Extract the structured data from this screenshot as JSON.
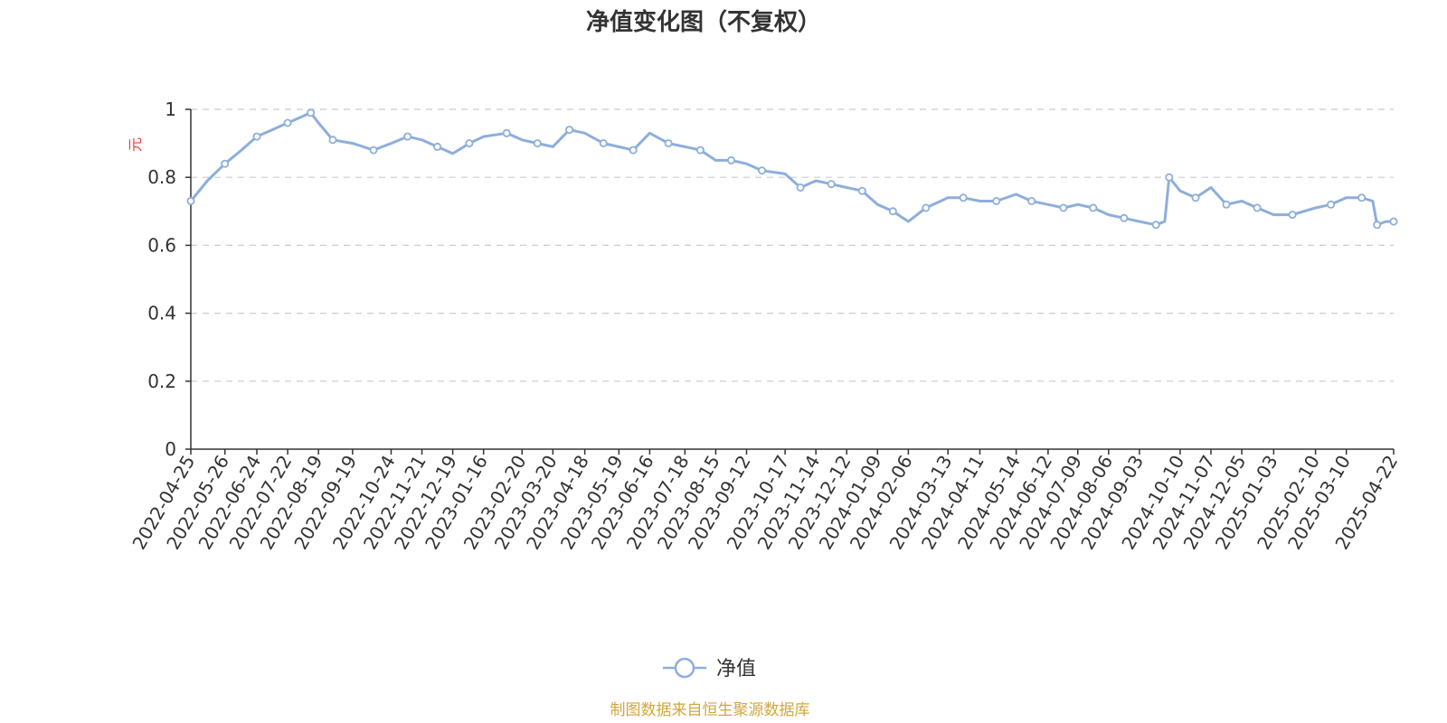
{
  "chart_data": {
    "type": "line",
    "title": "净值变化图（不复权）",
    "ylabel": "元",
    "ylim": [
      0,
      1
    ],
    "yticks": [
      0,
      0.2,
      0.4,
      0.6,
      0.8,
      1
    ],
    "ytick_labels": [
      "0",
      "0.2",
      "0.4",
      "0.6",
      "0.8",
      "1"
    ],
    "grid": true,
    "legend_position": "bottom-center",
    "x_tick_labels": [
      "2022-04-25",
      "2022-05-26",
      "2022-06-24",
      "2022-07-22",
      "2022-08-19",
      "2022-09-19",
      "2022-10-24",
      "2022-11-21",
      "2022-12-19",
      "2023-01-16",
      "2023-02-20",
      "2023-03-20",
      "2023-04-18",
      "2023-05-19",
      "2023-06-16",
      "2023-07-18",
      "2023-08-15",
      "2023-09-12",
      "2023-10-17",
      "2023-11-14",
      "2023-12-12",
      "2024-01-09",
      "2024-02-06",
      "2024-03-13",
      "2024-04-11",
      "2024-05-14",
      "2024-06-12",
      "2024-07-09",
      "2024-08-06",
      "2024-09-03",
      "2024-10-10",
      "2024-11-07",
      "2024-12-05",
      "2025-01-03",
      "2025-02-10",
      "2025-03-10",
      "2025-04-22"
    ],
    "series": [
      {
        "name": "净值",
        "color": "#8eaedb",
        "x": [
          "2022-04-25",
          "2022-05-10",
          "2022-05-26",
          "2022-06-10",
          "2022-06-24",
          "2022-07-08",
          "2022-07-22",
          "2022-08-05",
          "2022-08-12",
          "2022-08-19",
          "2022-09-01",
          "2022-09-19",
          "2022-10-08",
          "2022-10-24",
          "2022-11-08",
          "2022-11-21",
          "2022-12-05",
          "2022-12-19",
          "2023-01-03",
          "2023-01-16",
          "2023-02-06",
          "2023-02-20",
          "2023-03-06",
          "2023-03-20",
          "2023-04-04",
          "2023-04-18",
          "2023-05-05",
          "2023-05-19",
          "2023-06-01",
          "2023-06-16",
          "2023-07-03",
          "2023-07-18",
          "2023-08-01",
          "2023-08-15",
          "2023-08-29",
          "2023-09-12",
          "2023-09-26",
          "2023-10-17",
          "2023-10-31",
          "2023-11-14",
          "2023-11-28",
          "2023-12-12",
          "2023-12-26",
          "2024-01-09",
          "2024-01-23",
          "2024-02-06",
          "2024-02-22",
          "2024-03-13",
          "2024-03-27",
          "2024-04-11",
          "2024-04-26",
          "2024-05-14",
          "2024-05-28",
          "2024-06-12",
          "2024-06-26",
          "2024-07-09",
          "2024-07-23",
          "2024-08-06",
          "2024-08-20",
          "2024-09-03",
          "2024-09-18",
          "2024-09-26",
          "2024-09-30",
          "2024-10-10",
          "2024-10-24",
          "2024-11-07",
          "2024-11-21",
          "2024-12-05",
          "2024-12-19",
          "2025-01-03",
          "2025-01-20",
          "2025-02-10",
          "2025-02-24",
          "2025-03-10",
          "2025-03-24",
          "2025-04-03",
          "2025-04-07",
          "2025-04-15",
          "2025-04-22"
        ],
        "y": [
          0.73,
          0.79,
          0.84,
          0.88,
          0.92,
          0.94,
          0.96,
          0.98,
          0.99,
          0.96,
          0.91,
          0.9,
          0.88,
          0.9,
          0.92,
          0.91,
          0.89,
          0.87,
          0.9,
          0.92,
          0.93,
          0.91,
          0.9,
          0.89,
          0.94,
          0.93,
          0.9,
          0.89,
          0.88,
          0.93,
          0.9,
          0.89,
          0.88,
          0.85,
          0.85,
          0.84,
          0.82,
          0.81,
          0.77,
          0.79,
          0.78,
          0.77,
          0.76,
          0.72,
          0.7,
          0.67,
          0.71,
          0.74,
          0.74,
          0.73,
          0.73,
          0.75,
          0.73,
          0.72,
          0.71,
          0.72,
          0.71,
          0.69,
          0.68,
          0.67,
          0.66,
          0.67,
          0.8,
          0.76,
          0.74,
          0.77,
          0.72,
          0.73,
          0.71,
          0.69,
          0.69,
          0.71,
          0.72,
          0.74,
          0.74,
          0.73,
          0.66,
          0.67,
          0.67
        ]
      }
    ]
  },
  "legend": {
    "label": "净值"
  },
  "source": {
    "text": "制图数据来自恒生聚源数据库",
    "color": "#d4a63d"
  },
  "axis_title_color": "#e8403a"
}
